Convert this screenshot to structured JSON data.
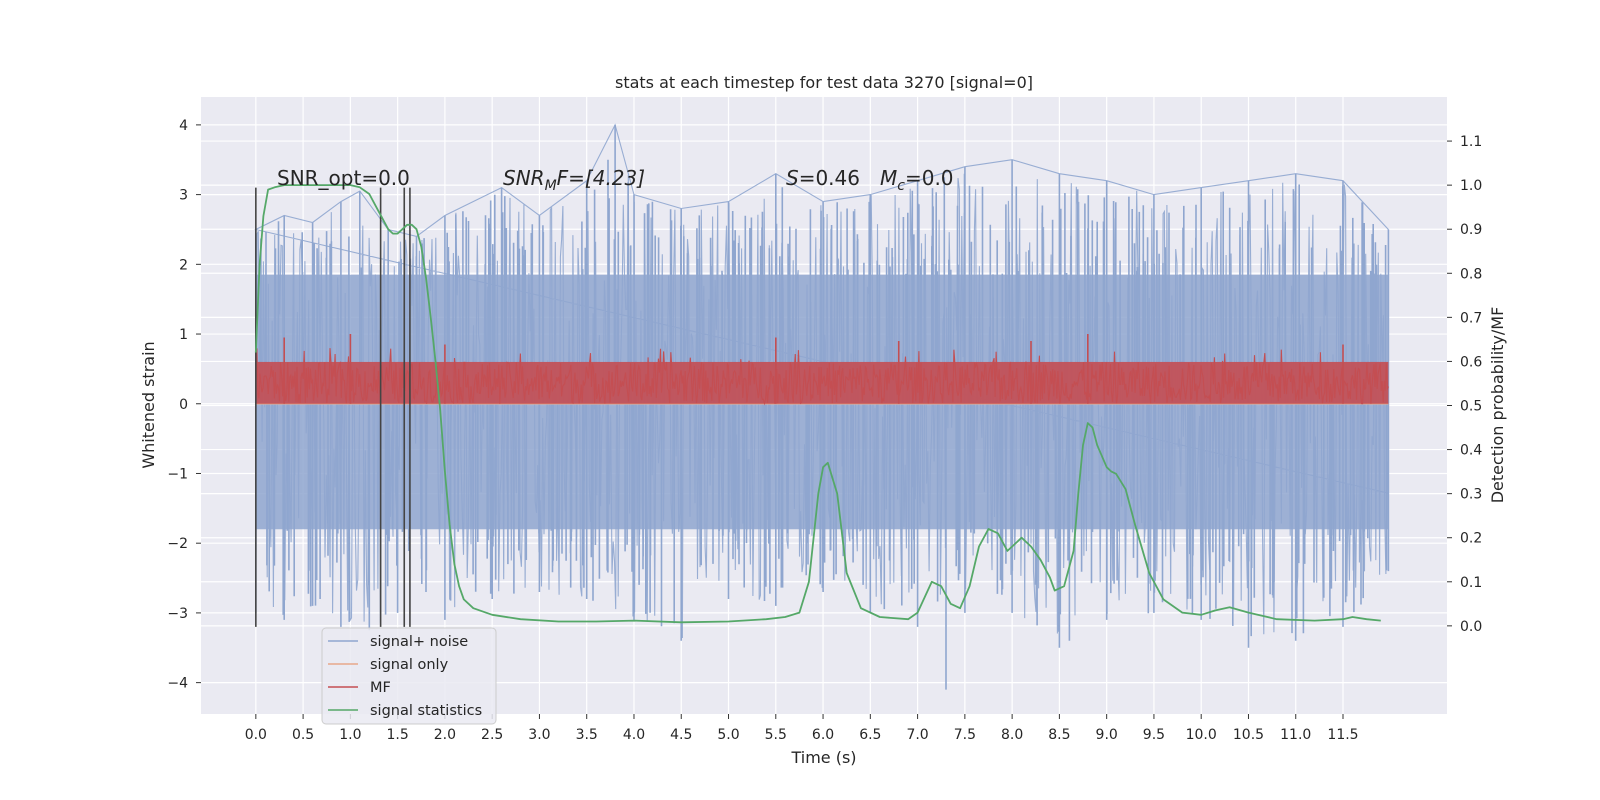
{
  "chart_data": {
    "type": "line",
    "title": "stats at each timestep for test data 3270 [signal=0]",
    "xlabel": "Time (s)",
    "ylabel": "Whitened strain",
    "y2label": "Detection probability/MF",
    "xlim": [
      -0.58,
      12.6
    ],
    "ylim": [
      -4.45,
      4.4
    ],
    "y2lim": [
      -0.2,
      1.2
    ],
    "xticks": [
      "0.0",
      "0.5",
      "1.0",
      "1.5",
      "2.0",
      "2.5",
      "3.0",
      "3.5",
      "4.0",
      "4.5",
      "5.0",
      "5.5",
      "6.0",
      "6.5",
      "7.0",
      "7.5",
      "8.0",
      "8.5",
      "9.0",
      "9.5",
      "10.0",
      "10.5",
      "11.0",
      "11.5"
    ],
    "yticks": [
      "4",
      "3",
      "2",
      "1",
      "0",
      "−1",
      "−2",
      "−3",
      "−4"
    ],
    "y2ticks": [
      "1.1",
      "1.0",
      "0.9",
      "0.8",
      "0.7",
      "0.6",
      "0.5",
      "0.4",
      "0.3",
      "0.2",
      "0.1",
      "0.0"
    ],
    "grid": true,
    "legend_position": "lower-left",
    "colors": {
      "noise": "#8fa6cf",
      "signal_only": "#e8a889",
      "mf": "#c44e52",
      "stats": "#55a868",
      "vline": "#444444",
      "background": "#eaeaf2"
    },
    "annotations": {
      "snr_opt": "SNR_opt=0.0",
      "snr_mf_prefix": "SNR",
      "snr_mf_sub": "M",
      "snr_mf_suffix": "F=[4.23]",
      "s_label": "S",
      "s_value": "=0.46",
      "mc_label": "M",
      "mc_sub": "c",
      "mc_value": "=0.0"
    },
    "noise_series": {
      "name": "signal+ noise",
      "t_range": [
        0.0,
        11.98
      ],
      "upper_envelope": [
        [
          0.0,
          2.5
        ],
        [
          0.3,
          2.7
        ],
        [
          0.6,
          2.6
        ],
        [
          0.9,
          2.9
        ],
        [
          1.1,
          3.05
        ],
        [
          1.4,
          2.5
        ],
        [
          1.7,
          2.4
        ],
        [
          2.0,
          2.7
        ],
        [
          2.6,
          3.1
        ],
        [
          3.0,
          2.7
        ],
        [
          3.5,
          3.2
        ],
        [
          3.8,
          4.0
        ],
        [
          4.0,
          3.0
        ],
        [
          4.5,
          2.8
        ],
        [
          5.0,
          2.9
        ],
        [
          5.5,
          3.3
        ],
        [
          6.0,
          2.9
        ],
        [
          6.5,
          3.0
        ],
        [
          7.0,
          3.2
        ],
        [
          7.5,
          3.4
        ],
        [
          8.0,
          3.5
        ],
        [
          8.5,
          3.3
        ],
        [
          9.0,
          3.2
        ],
        [
          9.5,
          3.0
        ],
        [
          10.0,
          3.1
        ],
        [
          10.5,
          3.2
        ],
        [
          11.0,
          3.3
        ],
        [
          11.5,
          3.2
        ],
        [
          11.98,
          2.5
        ]
      ],
      "lower_envelope": [
        [
          0.0,
          -3.0
        ],
        [
          0.3,
          -3.1
        ],
        [
          0.6,
          -2.9
        ],
        [
          0.9,
          -3.2
        ],
        [
          1.2,
          -3.25
        ],
        [
          1.5,
          -3.0
        ],
        [
          1.8,
          -2.7
        ],
        [
          2.0,
          -3.1
        ],
        [
          2.5,
          -2.8
        ],
        [
          3.0,
          -2.7
        ],
        [
          3.5,
          -2.8
        ],
        [
          4.0,
          -3.1
        ],
        [
          4.5,
          -3.4
        ],
        [
          5.0,
          -2.8
        ],
        [
          5.5,
          -2.9
        ],
        [
          6.0,
          -2.7
        ],
        [
          6.5,
          -3.0
        ],
        [
          7.0,
          -3.2
        ],
        [
          7.3,
          -4.1
        ],
        [
          7.5,
          -3.0
        ],
        [
          8.0,
          -3.0
        ],
        [
          8.5,
          -3.5
        ],
        [
          9.0,
          -3.1
        ],
        [
          9.5,
          -3.0
        ],
        [
          10.0,
          -3.1
        ],
        [
          10.5,
          -3.5
        ],
        [
          11.0,
          -3.4
        ],
        [
          11.5,
          -3.2
        ],
        [
          11.98,
          -2.4
        ]
      ],
      "band_upper": 1.85,
      "band_lower": -1.8
    },
    "signal_only_series": {
      "name": "signal only",
      "t_range": [
        0.0,
        11.98
      ],
      "value": 0.0
    },
    "mf_series": {
      "name": "MF",
      "t_range": [
        0.0,
        11.98
      ],
      "base": 0.0,
      "band_upper": 0.6,
      "peaks": [
        [
          0.3,
          0.95
        ],
        [
          1.0,
          1.0
        ],
        [
          2.0,
          0.85
        ],
        [
          5.5,
          0.95
        ],
        [
          6.8,
          0.9
        ],
        [
          8.2,
          0.9
        ],
        [
          8.8,
          1.0
        ],
        [
          11.5,
          0.85
        ]
      ]
    },
    "vlines": [
      0.0,
      1.32,
      1.57,
      1.63
    ],
    "vline_range": [
      -3.2,
      3.1
    ],
    "stats_series": {
      "name": "signal statistics",
      "t": [
        0.0,
        0.04,
        0.08,
        0.13,
        0.2,
        0.3,
        0.5,
        0.7,
        0.9,
        1.0,
        1.1,
        1.2,
        1.3,
        1.35,
        1.4,
        1.45,
        1.5,
        1.55,
        1.6,
        1.65,
        1.7,
        1.75,
        1.8,
        1.85,
        1.9,
        1.95,
        2.0,
        2.05,
        2.1,
        2.15,
        2.2,
        2.3,
        2.5,
        2.8,
        3.2,
        3.6,
        4.0,
        4.5,
        5.0,
        5.4,
        5.6,
        5.75,
        5.85,
        5.95,
        6.0,
        6.05,
        6.15,
        6.25,
        6.4,
        6.6,
        6.9,
        7.0,
        7.15,
        7.25,
        7.35,
        7.45,
        7.55,
        7.65,
        7.75,
        7.85,
        7.95,
        8.05,
        8.1,
        8.2,
        8.3,
        8.4,
        8.45,
        8.55,
        8.65,
        8.7,
        8.75,
        8.8,
        8.85,
        8.9,
        9.0,
        9.05,
        9.1,
        9.2,
        9.3,
        9.45,
        9.6,
        9.8,
        10.0,
        10.15,
        10.3,
        10.5,
        10.8,
        11.2,
        11.5,
        11.6,
        11.75,
        11.9
      ],
      "y": [
        0.62,
        0.82,
        0.93,
        0.99,
        0.995,
        1.0,
        1.0,
        1.0,
        1.0,
        1.0,
        0.995,
        0.98,
        0.94,
        0.92,
        0.9,
        0.89,
        0.89,
        0.9,
        0.91,
        0.91,
        0.9,
        0.86,
        0.79,
        0.7,
        0.6,
        0.49,
        0.35,
        0.23,
        0.14,
        0.09,
        0.06,
        0.04,
        0.025,
        0.015,
        0.01,
        0.01,
        0.012,
        0.008,
        0.01,
        0.015,
        0.02,
        0.03,
        0.1,
        0.3,
        0.36,
        0.37,
        0.3,
        0.12,
        0.04,
        0.02,
        0.015,
        0.03,
        0.1,
        0.09,
        0.05,
        0.04,
        0.09,
        0.18,
        0.22,
        0.21,
        0.17,
        0.19,
        0.2,
        0.18,
        0.15,
        0.11,
        0.08,
        0.09,
        0.17,
        0.3,
        0.41,
        0.46,
        0.45,
        0.41,
        0.36,
        0.35,
        0.345,
        0.31,
        0.23,
        0.12,
        0.06,
        0.03,
        0.025,
        0.035,
        0.042,
        0.03,
        0.015,
        0.012,
        0.015,
        0.02,
        0.015,
        0.012
      ]
    }
  }
}
